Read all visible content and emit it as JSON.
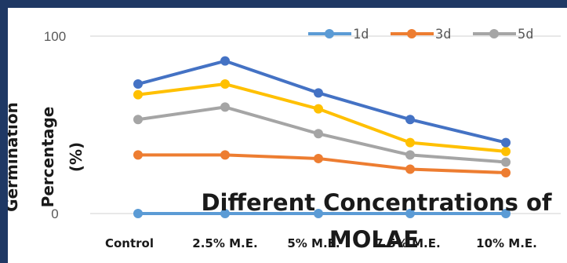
{
  "chart_data": {
    "type": "line",
    "categories": [
      "Control",
      "2.5% M.E.",
      "5% M.E.",
      "7.5% M.E.",
      "10% M.E."
    ],
    "series": [
      {
        "name": "1d",
        "color": "#5b9bd5",
        "values": [
          0,
          0,
          0,
          0,
          0
        ]
      },
      {
        "name": "3d",
        "color": "#ed7d31",
        "values": [
          33,
          33,
          31,
          25,
          23
        ]
      },
      {
        "name": "5d",
        "color": "#a5a5a5",
        "values": [
          53,
          60,
          45,
          33,
          29
        ]
      },
      {
        "name": "",
        "color": "#ffc000",
        "values": [
          67,
          73,
          59,
          40,
          35
        ]
      },
      {
        "name": "",
        "color": "#4472c4",
        "values": [
          73,
          86,
          68,
          53,
          40
        ]
      }
    ],
    "yticks": [
      "100",
      "0"
    ],
    "ylim": [
      0,
      100
    ],
    "ylabel_lines": [
      "Germination",
      "Percentage",
      "(%)"
    ],
    "xlabel_lines": [
      "Different Concentrations of",
      "MOLAE"
    ],
    "grid": true,
    "legend": "top-right"
  }
}
